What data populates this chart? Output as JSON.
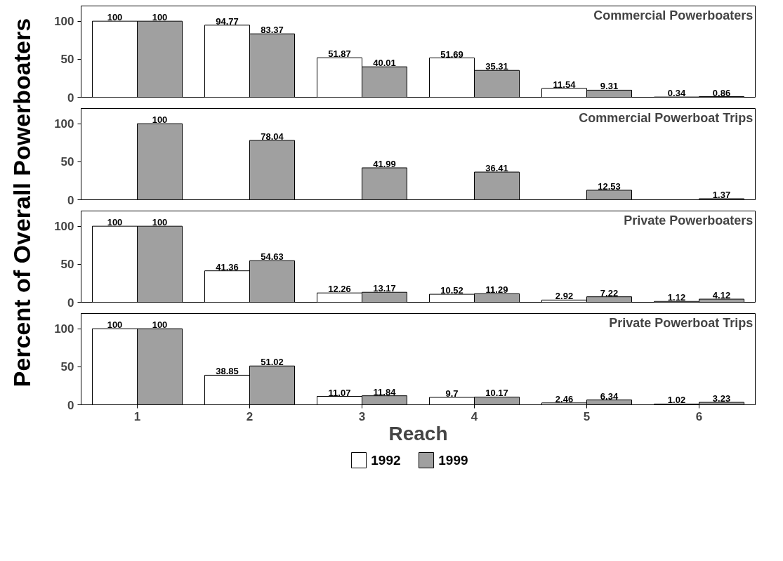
{
  "chart_data": [
    {
      "type": "bar",
      "title": "Commercial Powerboaters",
      "ylabel": "Percent of Overall Powerboaters",
      "categories": [
        "1",
        "2",
        "3",
        "4",
        "5",
        "6"
      ],
      "series": [
        {
          "color": "#ffffff",
          "values": [
            100,
            94.77,
            51.87,
            51.69,
            11.54,
            0.34
          ]
        },
        {
          "color": "#a0a0a0",
          "values": [
            100,
            83.37,
            40.01,
            35.31,
            9.31,
            0.86
          ]
        }
      ],
      "ylim": [
        0,
        120
      ],
      "yticks": [
        0,
        50,
        100
      ],
      "data_labels": true,
      "tick_labels": "y",
      "grid": false,
      "legend": false
    },
    {
      "type": "bar",
      "title": "Commercial Powerboat Trips",
      "categories": [
        "1",
        "2",
        "3",
        "4",
        "5",
        "6"
      ],
      "series": [
        {
          "color": "#ffffff",
          "values": [
            null,
            null,
            null,
            null,
            null,
            null
          ]
        },
        {
          "color": "#a0a0a0",
          "values": [
            100,
            78.04,
            41.99,
            36.41,
            12.53,
            1.37
          ]
        }
      ],
      "ylim": [
        0,
        120
      ],
      "yticks": [
        0,
        50,
        100
      ],
      "data_labels": true,
      "tick_labels": "y",
      "grid": false,
      "legend": false
    },
    {
      "type": "bar",
      "title": "Private Powerboaters",
      "categories": [
        "1",
        "2",
        "3",
        "4",
        "5",
        "6"
      ],
      "series": [
        {
          "color": "#ffffff",
          "values": [
            100,
            41.36,
            12.26,
            10.52,
            2.92,
            1.12
          ]
        },
        {
          "color": "#a0a0a0",
          "values": [
            100,
            54.63,
            13.17,
            11.29,
            7.22,
            4.12
          ]
        }
      ],
      "ylim": [
        0,
        120
      ],
      "yticks": [
        0,
        50,
        100
      ],
      "data_labels": true,
      "tick_labels": "y",
      "grid": false,
      "legend": false
    },
    {
      "type": "bar",
      "title": "Private Powerboat Trips",
      "xlabel": "Reach",
      "categories": [
        "1",
        "2",
        "3",
        "4",
        "5",
        "6"
      ],
      "series": [
        {
          "name": "1992",
          "color": "#ffffff",
          "values": [
            100,
            38.85,
            11.07,
            9.7,
            2.46,
            1.02
          ]
        },
        {
          "name": "1999",
          "color": "#a0a0a0",
          "values": [
            100,
            51.02,
            11.84,
            10.17,
            6.34,
            3.23
          ]
        }
      ],
      "ylim": [
        0,
        120
      ],
      "yticks": [
        0,
        50,
        100
      ],
      "data_labels": true,
      "grid": false,
      "legend": "bottom"
    }
  ]
}
